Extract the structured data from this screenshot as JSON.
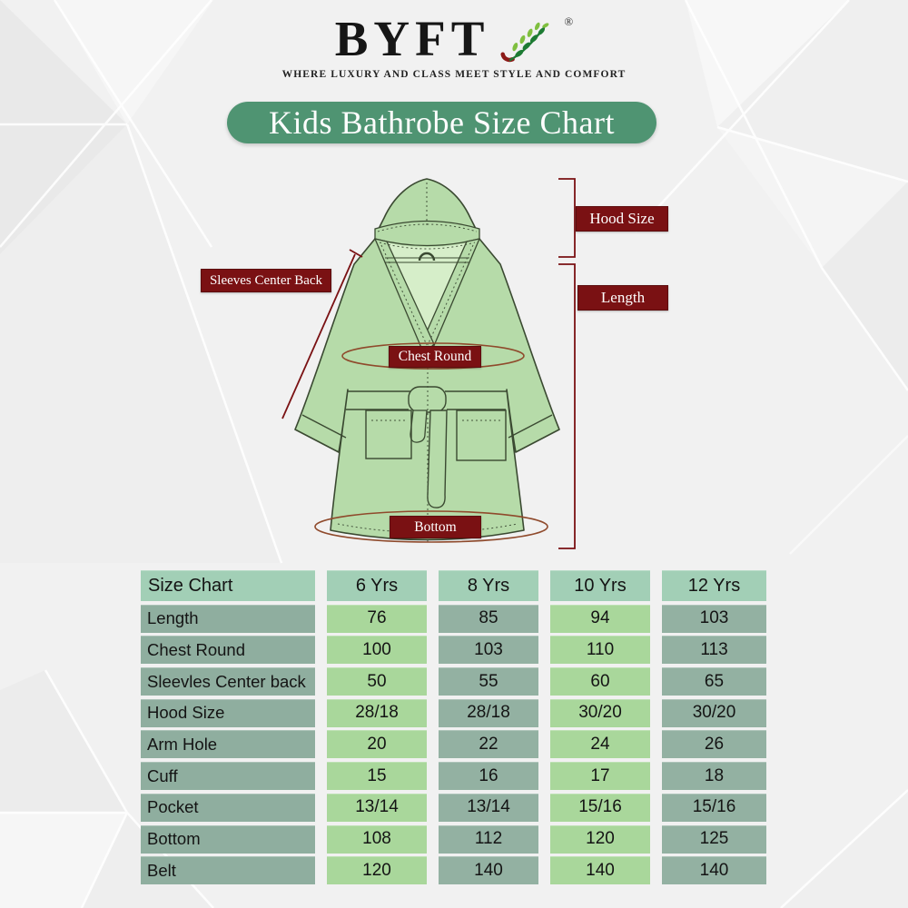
{
  "brand": {
    "name": "BYFT",
    "registered_mark": "®",
    "tagline": "WHERE LUXURY AND CLASS MEET STYLE AND COMFORT"
  },
  "banner": {
    "title": "Kids Bathrobe Size Chart"
  },
  "diagram": {
    "labels": {
      "hood_size": "Hood Size",
      "length": "Length",
      "sleeves_center_back": "Sleeves Center Back",
      "chest_round": "Chest Round",
      "bottom": "Bottom"
    }
  },
  "size_table": {
    "columns": [
      "Size Chart",
      "6 Yrs",
      "8 Yrs",
      "10 Yrs",
      "12 Yrs"
    ],
    "rows": [
      {
        "label": "Length",
        "values": [
          "76",
          "85",
          "94",
          "103"
        ]
      },
      {
        "label": "Chest Round",
        "values": [
          "100",
          "103",
          "110",
          "113"
        ]
      },
      {
        "label": "Sleevles Center back",
        "values": [
          "50",
          "55",
          "60",
          "65"
        ]
      },
      {
        "label": "Hood Size",
        "values": [
          "28/18",
          "28/18",
          "30/20",
          "30/20"
        ]
      },
      {
        "label": "Arm Hole",
        "values": [
          "20",
          "22",
          "24",
          "26"
        ]
      },
      {
        "label": "Cuff",
        "values": [
          "15",
          "16",
          "17",
          "18"
        ]
      },
      {
        "label": "Pocket",
        "values": [
          "13/14",
          "13/14",
          "15/16",
          "15/16"
        ]
      },
      {
        "label": "Bottom",
        "values": [
          "108",
          "112",
          "120",
          "125"
        ]
      },
      {
        "label": "Belt",
        "values": [
          "120",
          "140",
          "140",
          "140"
        ]
      }
    ]
  },
  "colors": {
    "accent_maroon": "#7a1113",
    "banner_green": "#4f9472",
    "robe_green": "#b6dba9",
    "robe_inner_green": "#d6eec9",
    "robe_outline": "#3a4931",
    "table_header": "#a2cfb6",
    "table_label": "#8fae9f",
    "table_cell_light": "#a9d79b",
    "table_cell_dark": "#93b1a2",
    "measure_ellipse": "#8f4a2c",
    "logo_leaf_dark": "#1d7b33",
    "logo_leaf_light": "#7fbf3f",
    "logo_stem_red": "#8c1a18"
  }
}
